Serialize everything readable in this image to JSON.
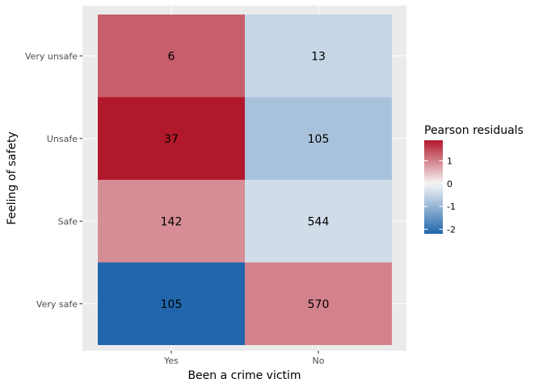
{
  "chart_data": {
    "type": "heatmap",
    "xlabel": "Been a crime victim",
    "ylabel": "Feeling of safety",
    "x_categories": [
      "Yes",
      "No"
    ],
    "y_categories": [
      "Very unsafe",
      "Unsafe",
      "Safe",
      "Very safe"
    ],
    "counts": [
      [
        6,
        13
      ],
      [
        37,
        105
      ],
      [
        142,
        544
      ],
      [
        105,
        570
      ]
    ],
    "residuals": [
      [
        1.3,
        -0.5
      ],
      [
        1.9,
        -0.8
      ],
      [
        0.9,
        -0.4
      ],
      [
        -2.2,
        1.0
      ]
    ],
    "legend": {
      "title": "Pearson residuals",
      "ticks": [
        1,
        0,
        -1,
        -2
      ],
      "tick_labels": [
        "1",
        "0",
        "-1",
        "-2"
      ],
      "range": [
        -2.2,
        1.9
      ],
      "placement": "right"
    },
    "colors": {
      "low": "#2166ac",
      "mid": "#f7f7f7",
      "high": "#b2182b",
      "panel_background": "#ebebeb",
      "grid": "#ffffff"
    }
  }
}
